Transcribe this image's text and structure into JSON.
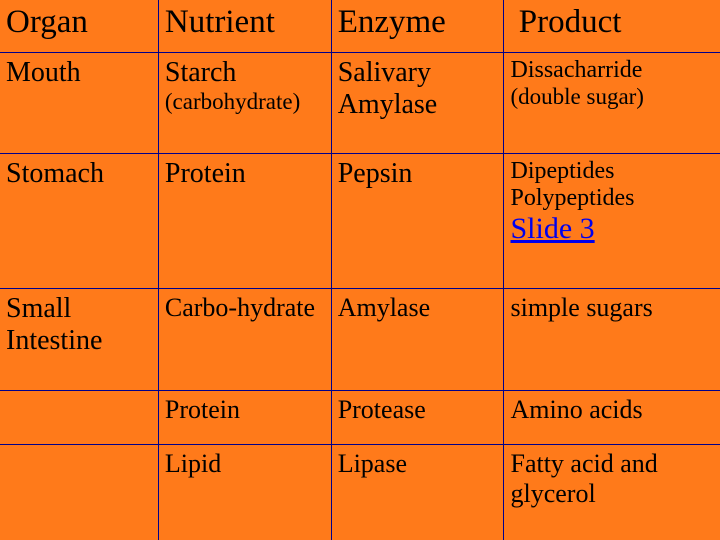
{
  "colors": {
    "background": "#ff7a1a",
    "border": "#00008b",
    "link": "#0000ee",
    "text": "#000000"
  },
  "font": {
    "family": "Times New Roman",
    "header_size": 33,
    "main_size": 28,
    "sub_size": 23
  },
  "columns": [
    {
      "label": "Organ"
    },
    {
      "label": "Nutrient"
    },
    {
      "label": "Enzyme"
    },
    {
      "label": "Product"
    }
  ],
  "rows": [
    {
      "organ": "Mouth",
      "nutrient": {
        "main": "Starch",
        "sub": "(carbohydrate)"
      },
      "enzyme": "Salivary Amylase",
      "product": {
        "main": "Dissacharride",
        "sub": "(double sugar)"
      }
    },
    {
      "organ": "Stomach",
      "nutrient": {
        "main": "Protein"
      },
      "enzyme": "Pepsin",
      "product": {
        "main": "Dipeptides Polypeptides",
        "link": "Slide 3"
      }
    },
    {
      "organ": "Small Intestine",
      "nutrient": {
        "main": "Carbo-hydrate"
      },
      "enzyme": "Amylase",
      "product": {
        "main": "simple sugars"
      }
    },
    {
      "organ": "",
      "nutrient": {
        "main": "Protein"
      },
      "enzyme": "Protease",
      "product": {
        "main": "Amino acids"
      }
    },
    {
      "organ": "",
      "nutrient": {
        "main": "Lipid"
      },
      "enzyme": "Lipase",
      "product": {
        "main": "Fatty acid and glycerol"
      }
    }
  ]
}
